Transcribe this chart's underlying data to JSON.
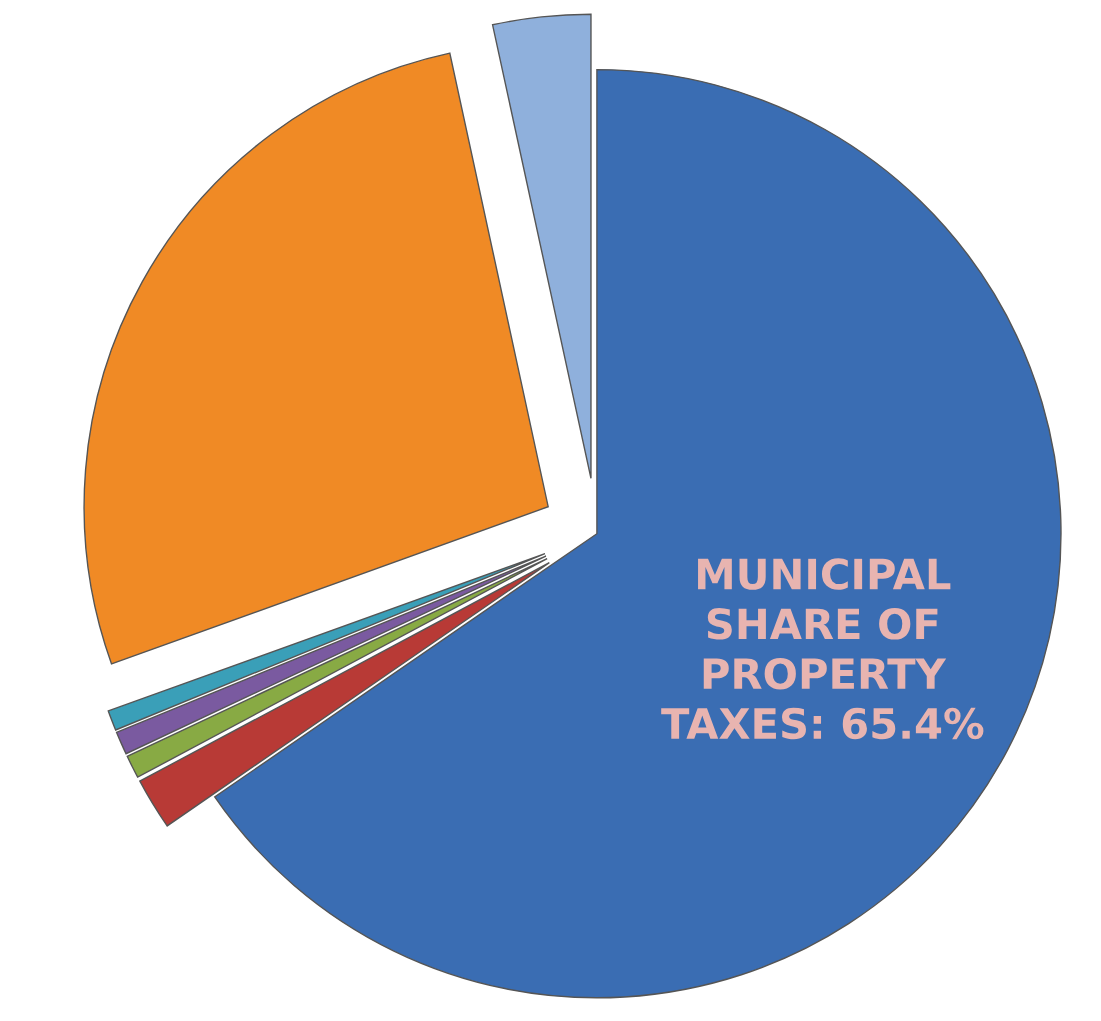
{
  "chart_data": {
    "type": "pie",
    "categories": [
      null,
      null,
      null,
      null,
      null,
      null,
      null
    ],
    "values": [
      65.4,
      1.8,
      0.8,
      0.8,
      0.7,
      27.1,
      3.4
    ],
    "colors": [
      "#3a6db3",
      "#b83a36",
      "#88aa44",
      "#7a5aa0",
      "#3a9fb8",
      "#f08a25",
      "#8fb0dc"
    ],
    "value_labels": [
      "MUNICIPAL\nSHARE OF\nPROPERTY\nTAXES: 65.4%",
      null,
      null,
      null,
      null,
      null,
      null
    ]
  }
}
